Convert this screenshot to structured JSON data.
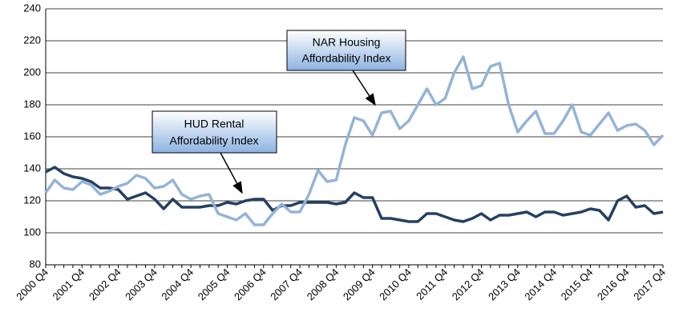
{
  "chart_data": {
    "type": "line",
    "categories": [
      "2000 Q4",
      null,
      null,
      null,
      "2001 Q4",
      null,
      null,
      null,
      "2002 Q4",
      null,
      null,
      null,
      "2003 Q4",
      null,
      null,
      null,
      "2004 Q4",
      null,
      null,
      null,
      "2005 Q4",
      null,
      null,
      null,
      "2006 Q4",
      null,
      null,
      null,
      "2007 Q4",
      null,
      null,
      null,
      "2008 Q4",
      null,
      null,
      null,
      "2009 Q4",
      null,
      null,
      null,
      "2010 Q4",
      null,
      null,
      null,
      "2011 Q4",
      null,
      null,
      null,
      "2012 Q4",
      null,
      null,
      null,
      "2013 Q4",
      null,
      null,
      null,
      "2014 Q4",
      null,
      null,
      null,
      "2015 Q4",
      null,
      null,
      null,
      "2016 Q4",
      null,
      null,
      null,
      "2017 Q4"
    ],
    "series": [
      {
        "name": "NAR Housing Affordability Index",
        "color": "#95b3d7",
        "values": [
          125,
          133,
          128,
          127,
          132,
          130,
          124,
          126,
          129,
          131,
          136,
          134,
          128,
          129,
          133,
          124,
          121,
          123,
          124,
          112,
          110,
          108,
          112,
          105,
          105,
          112,
          118,
          113,
          113,
          124,
          139,
          132,
          133,
          155,
          172,
          170,
          161,
          175,
          176,
          165,
          170,
          180,
          190,
          180,
          184,
          200,
          210,
          190,
          192,
          204,
          206,
          180,
          163,
          170,
          176,
          162,
          162,
          170,
          180,
          163,
          161,
          168,
          175,
          164,
          167,
          168,
          164,
          155,
          161
        ]
      },
      {
        "name": "HUD Rental Affordability Index",
        "color": "#254061",
        "values": [
          138,
          141,
          137,
          135,
          134,
          132,
          128,
          128,
          127,
          121,
          123,
          125,
          121,
          115,
          121,
          116,
          116,
          116,
          117,
          117,
          119,
          118,
          120,
          121,
          121,
          114,
          117,
          117,
          119,
          119,
          119,
          119,
          118,
          119,
          125,
          122,
          122,
          109,
          109,
          108,
          107,
          107,
          112,
          112,
          110,
          108,
          107,
          109,
          112,
          108,
          111,
          111,
          112,
          113,
          110,
          113,
          113,
          111,
          112,
          113,
          115,
          114,
          108,
          120,
          123,
          116,
          117,
          112,
          113
        ]
      }
    ],
    "annotations": [
      [
        "NAR Housing",
        "Affordability Index"
      ],
      [
        "HUD Rental",
        "Affordability Index"
      ]
    ],
    "ylim": [
      80,
      240
    ],
    "yticks": [
      80,
      100,
      120,
      140,
      160,
      180,
      200,
      220,
      240
    ],
    "grid": true
  }
}
